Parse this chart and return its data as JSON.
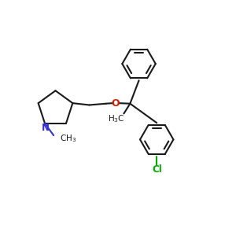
{
  "bg_color": "#ffffff",
  "line_color": "#1a1a1a",
  "n_color": "#3333cc",
  "o_color": "#cc2200",
  "cl_color": "#00aa00",
  "line_width": 1.5,
  "fig_width": 3.0,
  "fig_height": 3.0,
  "dpi": 100,
  "xlim": [
    0,
    10
  ],
  "ylim": [
    0,
    10
  ]
}
